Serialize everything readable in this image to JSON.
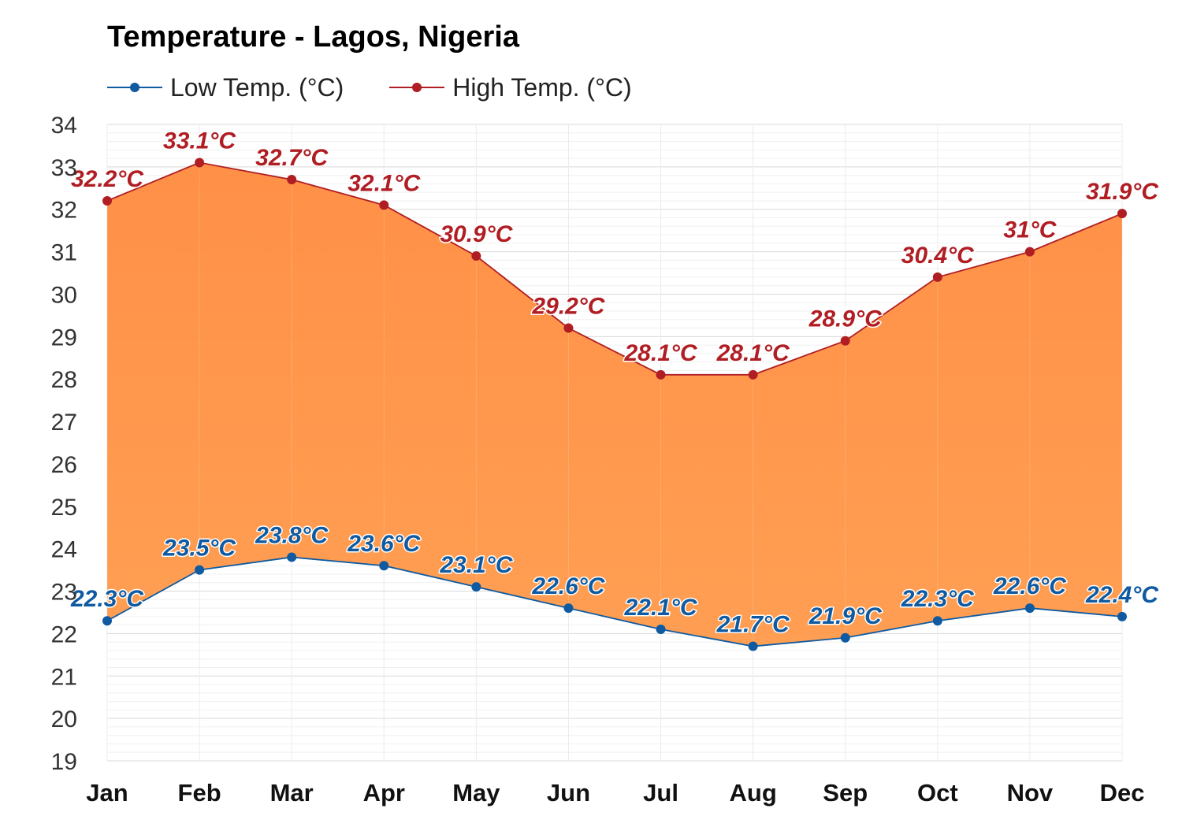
{
  "chart_data": {
    "type": "area",
    "title": "Temperature - Lagos, Nigeria",
    "categories": [
      "Jan",
      "Feb",
      "Mar",
      "Apr",
      "May",
      "Jun",
      "Jul",
      "Aug",
      "Sep",
      "Oct",
      "Nov",
      "Dec"
    ],
    "ylim": [
      19,
      34
    ],
    "yticks": [
      19,
      20,
      21,
      22,
      23,
      24,
      25,
      26,
      27,
      28,
      29,
      30,
      31,
      32,
      33,
      34
    ],
    "grid": true,
    "legend_position": "top-left",
    "fill_between": true,
    "fill_color": "#ff8c3a",
    "series": [
      {
        "name": "Low Temp. (°C)",
        "color": "#0f5aa0",
        "values": [
          22.3,
          23.5,
          23.8,
          23.6,
          23.1,
          22.6,
          22.1,
          21.7,
          21.9,
          22.3,
          22.6,
          22.4
        ],
        "labels": [
          "22.3°C",
          "23.5°C",
          "23.8°C",
          "23.6°C",
          "23.1°C",
          "22.6°C",
          "22.1°C",
          "21.7°C",
          "21.9°C",
          "22.3°C",
          "22.6°C",
          "22.4°C"
        ]
      },
      {
        "name": "High Temp. (°C)",
        "color": "#b01e24",
        "values": [
          32.2,
          33.1,
          32.7,
          32.1,
          30.9,
          29.2,
          28.1,
          28.1,
          28.9,
          30.4,
          31,
          31.9
        ],
        "labels": [
          "32.2°C",
          "33.1°C",
          "32.7°C",
          "32.1°C",
          "30.9°C",
          "29.2°C",
          "28.1°C",
          "28.1°C",
          "28.9°C",
          "30.4°C",
          "31°C",
          "31.9°C"
        ]
      }
    ]
  }
}
